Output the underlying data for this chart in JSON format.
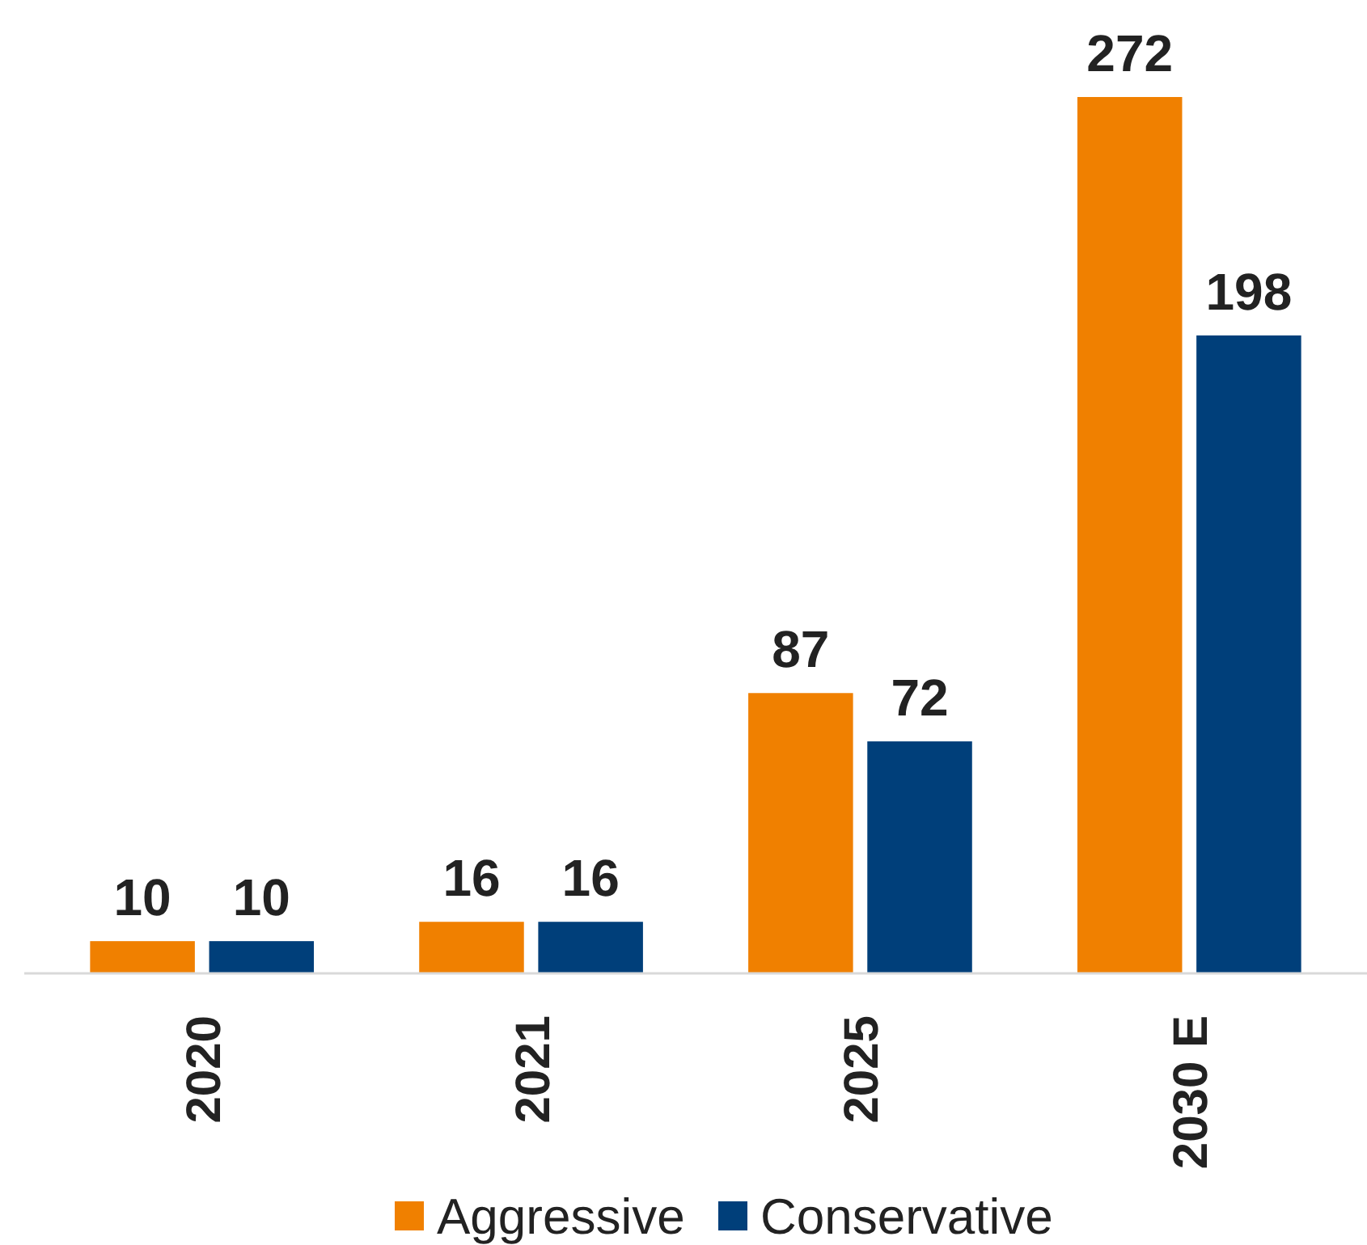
{
  "chart_data": {
    "type": "bar",
    "categories": [
      "2020",
      "2021",
      "2025",
      "2030 E"
    ],
    "series": [
      {
        "name": "Aggressive",
        "color": "#f08000",
        "values": [
          10,
          16,
          87,
          272
        ]
      },
      {
        "name": "Conservative",
        "color": "#003f7a",
        "values": [
          10,
          16,
          72,
          198
        ]
      }
    ],
    "data_labels": true,
    "legend": "bottom"
  }
}
